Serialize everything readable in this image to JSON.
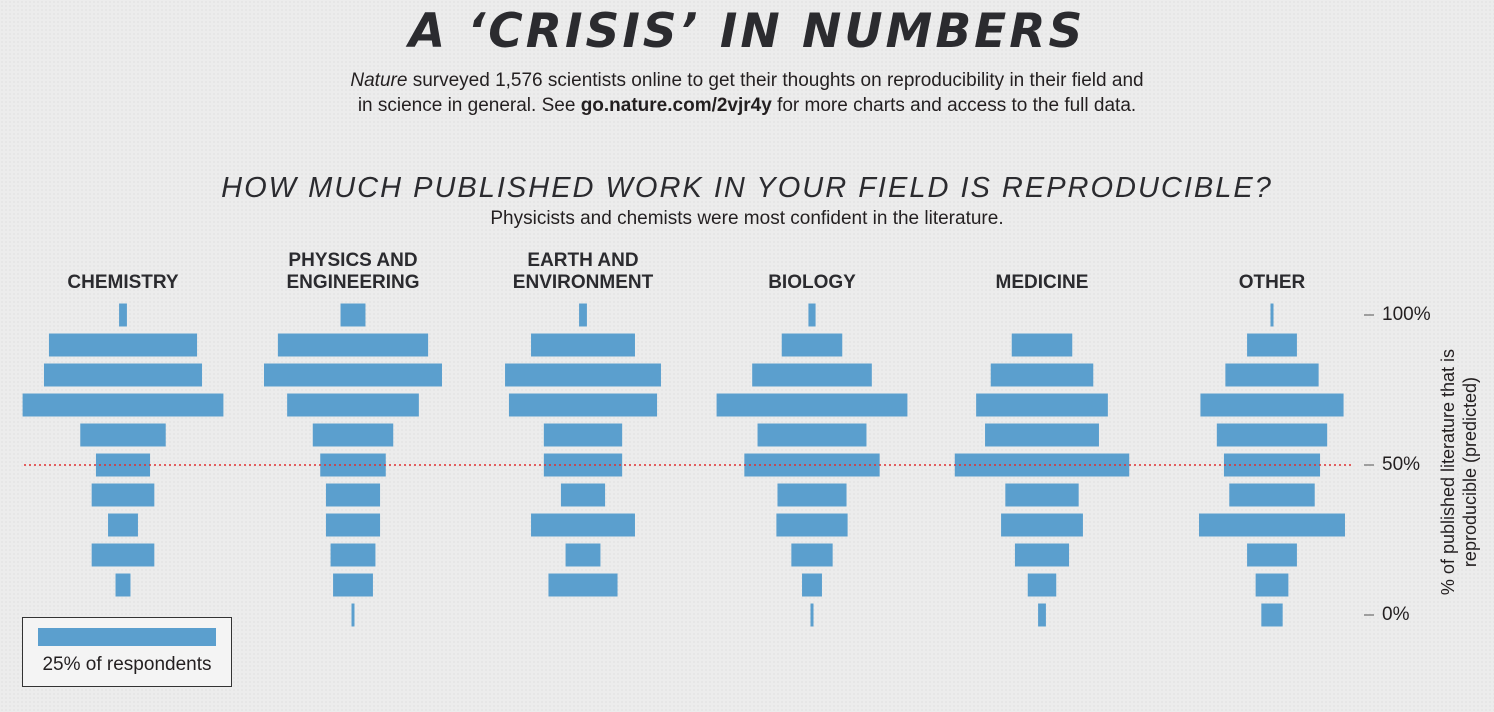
{
  "header": {
    "title": "A ‘CRISIS’ IN NUMBERS",
    "intro_line1_italic": "Nature",
    "intro_line1_rest": " surveyed 1,576 scientists online to get their thoughts on reproducibility in their field and",
    "intro_line2_start": "in science in general. See ",
    "intro_line2_link": "go.nature.com/2vjr4y",
    "intro_line2_end": " for more charts and access to the full data."
  },
  "colors": {
    "bar": "#5b9fce",
    "reference_line": "#e03030"
  },
  "chart_data": {
    "type": "bar",
    "orientation": "horizontal-centered",
    "title": "HOW MUCH PUBLISHED WORK IN YOUR FIELD IS REPRODUCIBLE?",
    "subtitle": "Physicists and chemists were most confident in the literature.",
    "ylabel": "% of published literature that is reproducible (predicted)",
    "ylim": [
      0,
      100
    ],
    "y_levels": [
      100,
      90,
      80,
      70,
      60,
      50,
      40,
      30,
      20,
      10,
      0
    ],
    "y_ticks": [
      {
        "value": 100,
        "label": "100%"
      },
      {
        "value": 50,
        "label": "50%"
      },
      {
        "value": 0,
        "label": "0%"
      }
    ],
    "reference_line": 50,
    "unit": "% of respondents",
    "legend": {
      "value": 25,
      "label": "25% of respondents"
    },
    "series": [
      {
        "name": "CHEMISTRY",
        "values": [
          1.1,
          20.8,
          22.2,
          28.2,
          12.0,
          7.6,
          8.8,
          4.2,
          8.8,
          2.1,
          0
        ]
      },
      {
        "name": "PHYSICS AND\nENGINEERING",
        "values": [
          3.5,
          21.1,
          25.0,
          18.5,
          11.3,
          9.2,
          7.6,
          7.6,
          6.3,
          5.6,
          0.4
        ]
      },
      {
        "name": "EARTH AND\nENVIRONMENT",
        "values": [
          1.1,
          14.6,
          21.9,
          20.8,
          11.0,
          11.0,
          6.2,
          14.6,
          4.9,
          9.7,
          0
        ]
      },
      {
        "name": "BIOLOGY",
        "values": [
          1.0,
          8.5,
          16.8,
          26.8,
          15.3,
          19.0,
          9.7,
          10.0,
          5.8,
          2.8,
          0.1
        ]
      },
      {
        "name": "MEDICINE",
        "values": [
          0,
          8.5,
          14.4,
          18.5,
          16.0,
          24.5,
          10.3,
          11.5,
          7.6,
          4.0,
          1.1
        ]
      },
      {
        "name": "OTHER",
        "values": [
          0.3,
          7.0,
          13.1,
          20.1,
          15.5,
          13.5,
          12.0,
          20.5,
          7.0,
          4.6,
          3.0
        ]
      }
    ]
  }
}
